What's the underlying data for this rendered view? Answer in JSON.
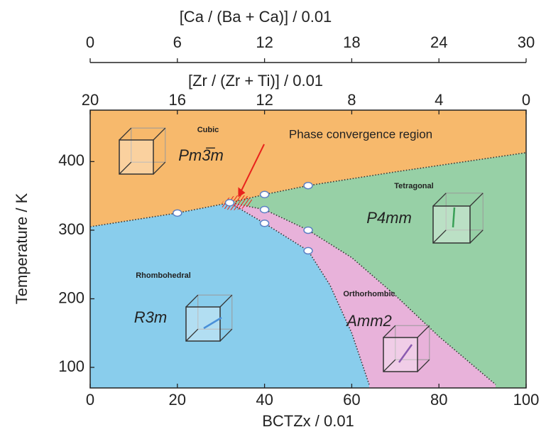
{
  "chart_data": {
    "type": "line",
    "x_label": "BCTZx / 0.01",
    "y_label": "Temperature / K",
    "xlim": [
      0,
      100
    ],
    "xticks": [
      0,
      20,
      40,
      60,
      80,
      100
    ],
    "ylim": [
      70,
      475
    ],
    "yticks": [
      100,
      200,
      300,
      400
    ],
    "zr_axis": {
      "label": "[Zr / (Zr + Ti)] / 0.01",
      "lim": [
        20,
        0
      ],
      "ticks": [
        20,
        16,
        12,
        8,
        4,
        0
      ]
    },
    "ca_axis": {
      "label": "[Ca / (Ba + Ca)] / 0.01",
      "lim": [
        0,
        30
      ],
      "ticks": [
        0,
        6,
        12,
        18,
        24,
        30
      ]
    },
    "phases": [
      {
        "name": "Cubic",
        "symbol": "Pm3̅m",
        "color": "#f7b96c"
      },
      {
        "name": "Tetragonal",
        "symbol": "P4mm",
        "color": "#97d0a6"
      },
      {
        "name": "Rhombohedral",
        "symbol": "R3m",
        "color": "#89cdec"
      },
      {
        "name": "Orthorhombic",
        "symbol": "Amm2",
        "color": "#e8b2da"
      }
    ],
    "line_color": "#333333",
    "series": [
      {
        "x": [
          0,
          20,
          32,
          40,
          50,
          70,
          100
        ],
        "values": [
          305,
          325,
          340,
          352,
          365,
          385,
          413
        ]
      },
      {
        "x": [
          32,
          40,
          50,
          60,
          70,
          80,
          93
        ],
        "values": [
          340,
          330,
          300,
          260,
          205,
          145,
          75
        ]
      },
      {
        "x": [
          32,
          40,
          50,
          55,
          60,
          64
        ],
        "values": [
          340,
          310,
          270,
          220,
          150,
          75
        ]
      }
    ],
    "points": {
      "x": [
        20,
        32,
        40,
        40,
        40,
        50,
        50,
        50
      ],
      "values": [
        325,
        340,
        352,
        330,
        310,
        365,
        300,
        270
      ],
      "color": "#5b7fc4"
    },
    "annotation": "Phase convergence region",
    "annotation_color": "#e8231c"
  }
}
